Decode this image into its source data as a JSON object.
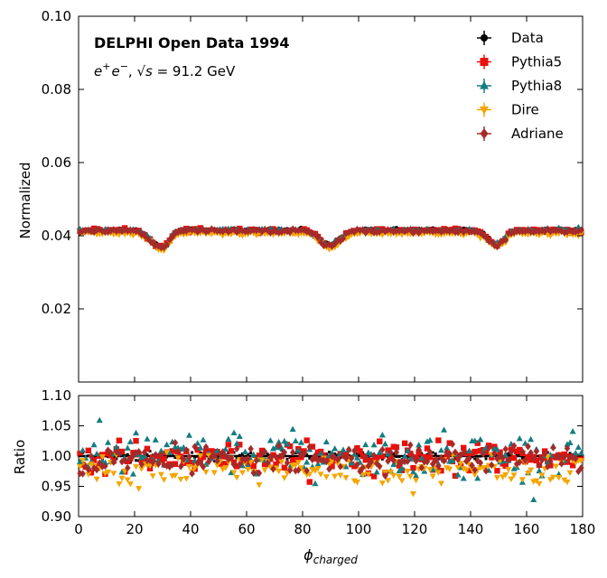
{
  "chart_data": {
    "type": "scatter",
    "annotation": {
      "title": "DELPHI Open Data 1994",
      "subtitle_pre": "e",
      "subtitle_sup1": "+",
      "subtitle_mid": "e",
      "subtitle_sup2": "−",
      "subtitle_sep": ", ",
      "subtitle_sqrt": "√s",
      "subtitle_post": " = 91.2 GeV"
    },
    "xlabel_main": "ϕ",
    "xlabel_sub": "charged",
    "main_panel": {
      "ylabel": "Normalized",
      "xlim": [
        0,
        180
      ],
      "ylim": [
        0.0,
        0.1
      ],
      "yticks": [
        "0.02",
        "0.04",
        "0.06",
        "0.08",
        "0.10"
      ],
      "ytick_values": [
        0.02,
        0.04,
        0.06,
        0.08,
        0.1
      ],
      "baseline": 0.0415,
      "dips": [
        {
          "center": 28,
          "depth": 0.0035,
          "width": 3
        },
        {
          "center": 31,
          "depth": 0.002,
          "width": 2
        },
        {
          "center": 88,
          "depth": 0.003,
          "width": 2.5
        },
        {
          "center": 92,
          "depth": 0.0025,
          "width": 2.5
        },
        {
          "center": 148,
          "depth": 0.0028,
          "width": 2.5
        },
        {
          "center": 151,
          "depth": 0.0018,
          "width": 2
        }
      ]
    },
    "ratio_panel": {
      "ylabel": "Ratio",
      "ylim": [
        0.9,
        1.1
      ],
      "yticks": [
        "0.90",
        "0.95",
        "1.00",
        "1.05",
        "1.10"
      ],
      "ytick_values": [
        0.9,
        0.95,
        1.0,
        1.05,
        1.1
      ]
    },
    "xticks": [
      "0",
      "20",
      "40",
      "60",
      "80",
      "100",
      "120",
      "140",
      "160",
      "180"
    ],
    "xtick_values": [
      0,
      20,
      40,
      60,
      80,
      100,
      120,
      140,
      160,
      180
    ],
    "n_points": 180,
    "series": [
      {
        "name": "Data",
        "color": "#000000",
        "marker": "circle",
        "ratio_offset": 0.0,
        "ratio_spread": 0.004
      },
      {
        "name": "Pythia5",
        "color": "#e8100c",
        "marker": "square",
        "ratio_offset": -0.002,
        "ratio_spread": 0.012
      },
      {
        "name": "Pythia8",
        "color": "#137d80",
        "marker": "triangle-up",
        "ratio_offset": 0.0,
        "ratio_spread": 0.018
      },
      {
        "name": "Dire",
        "color": "#f5a500",
        "marker": "triangle-down",
        "ratio_offset": -0.022,
        "ratio_spread": 0.014
      },
      {
        "name": "Adriane",
        "color": "#a52a2a",
        "marker": "diamond",
        "ratio_offset": -0.006,
        "ratio_spread": 0.012
      }
    ],
    "legend_position": "top-right"
  }
}
